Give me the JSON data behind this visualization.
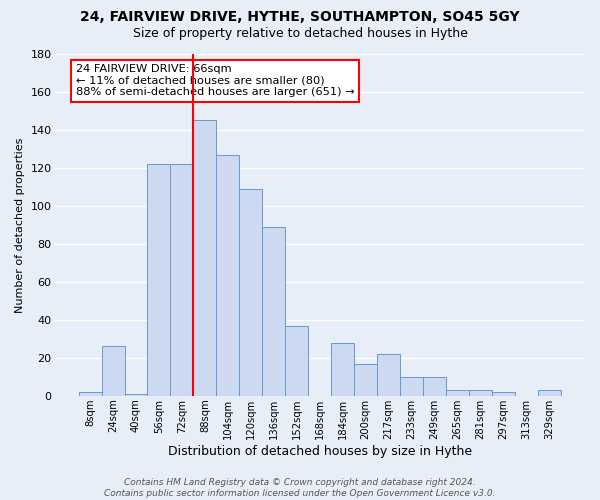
{
  "title": "24, FAIRVIEW DRIVE, HYTHE, SOUTHAMPTON, SO45 5GY",
  "subtitle": "Size of property relative to detached houses in Hythe",
  "xlabel": "Distribution of detached houses by size in Hythe",
  "ylabel": "Number of detached properties",
  "bar_labels": [
    "8sqm",
    "24sqm",
    "40sqm",
    "56sqm",
    "72sqm",
    "88sqm",
    "104sqm",
    "120sqm",
    "136sqm",
    "152sqm",
    "168sqm",
    "184sqm",
    "200sqm",
    "217sqm",
    "233sqm",
    "249sqm",
    "265sqm",
    "281sqm",
    "297sqm",
    "313sqm",
    "329sqm"
  ],
  "bar_values": [
    2,
    26,
    1,
    122,
    122,
    145,
    127,
    109,
    89,
    37,
    0,
    28,
    17,
    22,
    10,
    10,
    3,
    3,
    2,
    0,
    3
  ],
  "bar_color": "#ccd9f0",
  "bar_edge_color": "#6699cc",
  "red_line_index": 5,
  "annotation_text": "24 FAIRVIEW DRIVE: 66sqm\n← 11% of detached houses are smaller (80)\n88% of semi-detached houses are larger (651) →",
  "annotation_box_color": "white",
  "annotation_box_edge": "red",
  "ylim": [
    0,
    180
  ],
  "yticks": [
    0,
    20,
    40,
    60,
    80,
    100,
    120,
    140,
    160,
    180
  ],
  "footer": "Contains HM Land Registry data © Crown copyright and database right 2024.\nContains public sector information licensed under the Open Government Licence v3.0.",
  "background_color": "#e8eef8",
  "grid_color": "#d0d8e8",
  "title_fontsize": 10,
  "subtitle_fontsize": 9,
  "footer_fontsize": 6.5
}
